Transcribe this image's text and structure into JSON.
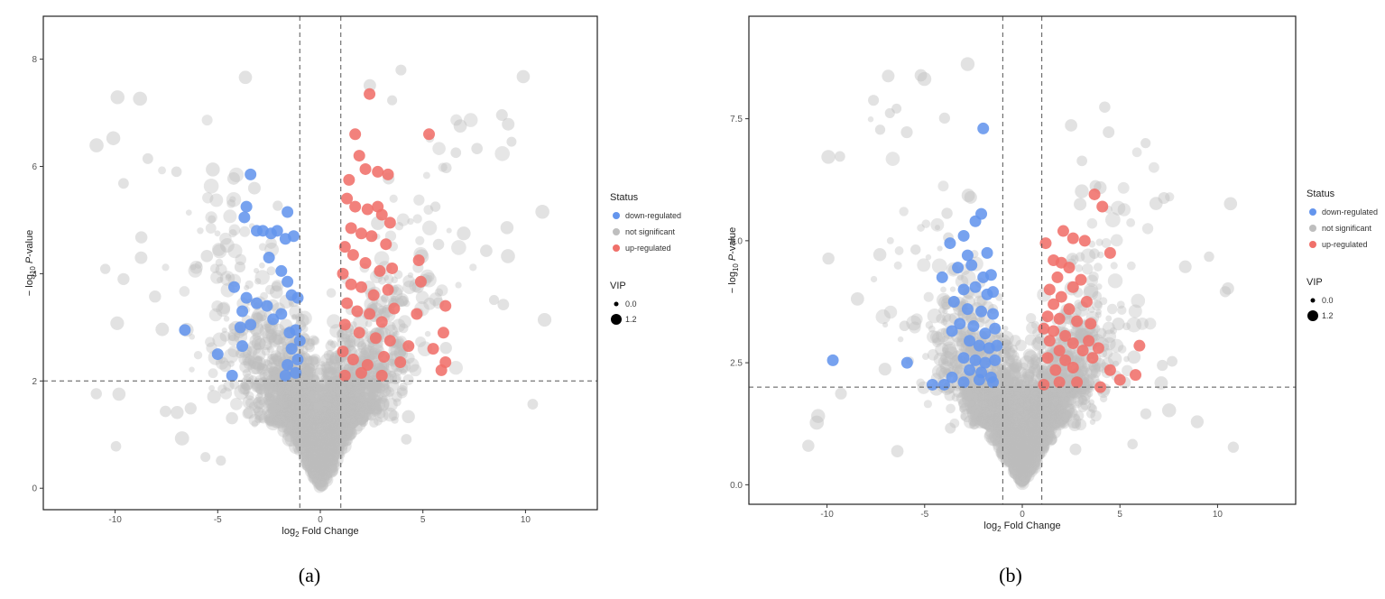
{
  "captions": [
    "(a)",
    "(b)"
  ],
  "chart_data": [
    {
      "type": "scatter",
      "title": "",
      "xlabel": "log2 Fold Change",
      "ylabel": "−log10 P-value",
      "xlim": [
        -13.5,
        13.5
      ],
      "ylim": [
        -0.4,
        8.8
      ],
      "x_ticks": [
        -10,
        -5,
        0,
        5,
        10
      ],
      "y_ticks": [
        0,
        2,
        4,
        6,
        8
      ],
      "thresholds": {
        "x": [
          -1,
          1
        ],
        "y": 2
      },
      "grid": false,
      "legend": {
        "position": "right",
        "status_title": "Status",
        "status_entries": [
          {
            "label": "down-regulated",
            "color": "#6495ED"
          },
          {
            "label": "not significant",
            "color": "#BEBEBE"
          },
          {
            "label": "up-regulated",
            "color": "#F0706A"
          }
        ],
        "size_title": "VIP",
        "size_entries": [
          "0.0",
          "1.2"
        ]
      },
      "series": [
        {
          "name": "down-regulated",
          "color": "#6495ED",
          "points": [
            [
              -3.4,
              5.85
            ],
            [
              -3.6,
              5.25
            ],
            [
              -3.7,
              5.05
            ],
            [
              -1.6,
              5.15
            ],
            [
              -2.8,
              4.8
            ],
            [
              -2.4,
              4.75
            ],
            [
              -2.1,
              4.8
            ],
            [
              -1.7,
              4.65
            ],
            [
              -1.3,
              4.7
            ],
            [
              -3.1,
              4.8
            ],
            [
              -2.5,
              4.3
            ],
            [
              -1.9,
              4.05
            ],
            [
              -1.6,
              3.85
            ],
            [
              -1.4,
              3.6
            ],
            [
              -1.1,
              3.55
            ],
            [
              -4.2,
              3.75
            ],
            [
              -3.6,
              3.55
            ],
            [
              -3.1,
              3.45
            ],
            [
              -2.6,
              3.4
            ],
            [
              -2.3,
              3.15
            ],
            [
              -1.9,
              3.25
            ],
            [
              -3.8,
              3.3
            ],
            [
              -3.4,
              3.05
            ],
            [
              -3.9,
              3.0
            ],
            [
              -1.5,
              2.9
            ],
            [
              -1.2,
              2.95
            ],
            [
              -1.0,
              2.75
            ],
            [
              -1.4,
              2.6
            ],
            [
              -6.6,
              2.95
            ],
            [
              -5.0,
              2.5
            ],
            [
              -3.8,
              2.65
            ],
            [
              -1.1,
              2.4
            ],
            [
              -1.6,
              2.3
            ],
            [
              -4.3,
              2.1
            ],
            [
              -1.7,
              2.1
            ],
            [
              -1.2,
              2.15
            ]
          ]
        },
        {
          "name": "up-regulated",
          "color": "#F0706A",
          "points": [
            [
              2.4,
              7.35
            ],
            [
              1.7,
              6.6
            ],
            [
              5.3,
              6.6
            ],
            [
              1.9,
              6.2
            ],
            [
              2.2,
              5.95
            ],
            [
              2.8,
              5.9
            ],
            [
              3.3,
              5.85
            ],
            [
              1.4,
              5.75
            ],
            [
              1.3,
              5.4
            ],
            [
              1.7,
              5.25
            ],
            [
              2.3,
              5.2
            ],
            [
              2.8,
              5.25
            ],
            [
              3.0,
              5.1
            ],
            [
              3.4,
              4.95
            ],
            [
              1.5,
              4.85
            ],
            [
              2.0,
              4.75
            ],
            [
              2.5,
              4.7
            ],
            [
              3.2,
              4.55
            ],
            [
              1.2,
              4.5
            ],
            [
              1.6,
              4.35
            ],
            [
              2.2,
              4.2
            ],
            [
              2.9,
              4.05
            ],
            [
              3.5,
              4.1
            ],
            [
              4.8,
              4.25
            ],
            [
              1.1,
              4.0
            ],
            [
              1.5,
              3.8
            ],
            [
              2.0,
              3.75
            ],
            [
              2.6,
              3.6
            ],
            [
              3.3,
              3.7
            ],
            [
              4.9,
              3.85
            ],
            [
              1.3,
              3.45
            ],
            [
              1.8,
              3.3
            ],
            [
              2.4,
              3.25
            ],
            [
              3.0,
              3.1
            ],
            [
              3.6,
              3.35
            ],
            [
              4.7,
              3.25
            ],
            [
              6.1,
              3.4
            ],
            [
              1.2,
              3.05
            ],
            [
              1.9,
              2.9
            ],
            [
              2.7,
              2.8
            ],
            [
              3.4,
              2.75
            ],
            [
              4.3,
              2.65
            ],
            [
              5.5,
              2.6
            ],
            [
              6.0,
              2.9
            ],
            [
              1.1,
              2.55
            ],
            [
              1.6,
              2.4
            ],
            [
              2.3,
              2.3
            ],
            [
              3.1,
              2.45
            ],
            [
              3.9,
              2.35
            ],
            [
              5.9,
              2.2
            ],
            [
              6.1,
              2.35
            ],
            [
              1.2,
              2.1
            ],
            [
              2.0,
              2.15
            ],
            [
              3.0,
              2.1
            ]
          ]
        }
      ]
    },
    {
      "type": "scatter",
      "title": "",
      "xlabel": "log2 Fold Change",
      "ylabel": "−log10 P-value",
      "xlim": [
        -14,
        14
      ],
      "ylim": [
        -0.4,
        9.6
      ],
      "x_ticks": [
        -10,
        -5,
        0,
        5,
        10
      ],
      "y_ticks": [
        0.0,
        2.5,
        5.0,
        7.5
      ],
      "thresholds": {
        "x": [
          -1,
          1
        ],
        "y": 2
      },
      "grid": false,
      "legend": {
        "position": "right",
        "status_title": "Status",
        "status_entries": [
          {
            "label": "down-regulated",
            "color": "#6495ED"
          },
          {
            "label": "not significant",
            "color": "#BEBEBE"
          },
          {
            "label": "up-regulated",
            "color": "#F0706A"
          }
        ],
        "size_title": "VIP",
        "size_entries": [
          "0.0",
          "1.2"
        ]
      },
      "series": [
        {
          "name": "down-regulated",
          "color": "#6495ED",
          "points": [
            [
              -2.0,
              7.3
            ],
            [
              -2.1,
              5.55
            ],
            [
              -2.4,
              5.4
            ],
            [
              -3.0,
              5.1
            ],
            [
              -3.7,
              4.95
            ],
            [
              -2.8,
              4.7
            ],
            [
              -1.8,
              4.75
            ],
            [
              -2.6,
              4.5
            ],
            [
              -3.3,
              4.45
            ],
            [
              -4.1,
              4.25
            ],
            [
              -2.0,
              4.25
            ],
            [
              -1.6,
              4.3
            ],
            [
              -2.4,
              4.05
            ],
            [
              -3.0,
              4.0
            ],
            [
              -1.8,
              3.9
            ],
            [
              -1.5,
              3.95
            ],
            [
              -3.5,
              3.75
            ],
            [
              -2.8,
              3.6
            ],
            [
              -2.1,
              3.55
            ],
            [
              -1.5,
              3.5
            ],
            [
              -3.2,
              3.3
            ],
            [
              -2.5,
              3.25
            ],
            [
              -1.9,
              3.1
            ],
            [
              -1.4,
              3.2
            ],
            [
              -3.6,
              3.15
            ],
            [
              -2.7,
              2.95
            ],
            [
              -2.2,
              2.85
            ],
            [
              -1.7,
              2.8
            ],
            [
              -1.3,
              2.85
            ],
            [
              -3.0,
              2.6
            ],
            [
              -2.4,
              2.55
            ],
            [
              -1.9,
              2.5
            ],
            [
              -1.4,
              2.55
            ],
            [
              -2.7,
              2.35
            ],
            [
              -2.1,
              2.3
            ],
            [
              -1.6,
              2.2
            ],
            [
              -3.6,
              2.2
            ],
            [
              -4.0,
              2.05
            ],
            [
              -3.0,
              2.1
            ],
            [
              -2.2,
              2.15
            ],
            [
              -1.5,
              2.1
            ],
            [
              -4.6,
              2.05
            ],
            [
              -5.9,
              2.5
            ],
            [
              -9.7,
              2.55
            ]
          ]
        },
        {
          "name": "up-regulated",
          "color": "#F0706A",
          "points": [
            [
              3.7,
              5.95
            ],
            [
              4.1,
              5.7
            ],
            [
              2.1,
              5.2
            ],
            [
              1.2,
              4.95
            ],
            [
              2.6,
              5.05
            ],
            [
              3.2,
              5.0
            ],
            [
              4.5,
              4.75
            ],
            [
              1.6,
              4.6
            ],
            [
              2.0,
              4.55
            ],
            [
              2.4,
              4.45
            ],
            [
              1.8,
              4.25
            ],
            [
              3.0,
              4.2
            ],
            [
              2.6,
              4.05
            ],
            [
              1.4,
              4.0
            ],
            [
              2.0,
              3.85
            ],
            [
              3.3,
              3.75
            ],
            [
              1.6,
              3.7
            ],
            [
              2.4,
              3.6
            ],
            [
              1.3,
              3.45
            ],
            [
              1.9,
              3.4
            ],
            [
              2.8,
              3.35
            ],
            [
              3.5,
              3.3
            ],
            [
              1.1,
              3.2
            ],
            [
              1.6,
              3.15
            ],
            [
              2.2,
              3.05
            ],
            [
              1.4,
              2.95
            ],
            [
              2.6,
              2.9
            ],
            [
              3.4,
              2.95
            ],
            [
              3.9,
              2.8
            ],
            [
              1.9,
              2.75
            ],
            [
              3.1,
              2.75
            ],
            [
              6.0,
              2.85
            ],
            [
              1.3,
              2.6
            ],
            [
              2.2,
              2.55
            ],
            [
              3.6,
              2.6
            ],
            [
              1.7,
              2.35
            ],
            [
              2.6,
              2.4
            ],
            [
              4.5,
              2.35
            ],
            [
              5.0,
              2.15
            ],
            [
              5.8,
              2.25
            ],
            [
              1.1,
              2.05
            ],
            [
              1.9,
              2.1
            ],
            [
              2.8,
              2.1
            ],
            [
              4.0,
              2.0
            ]
          ]
        }
      ]
    }
  ]
}
